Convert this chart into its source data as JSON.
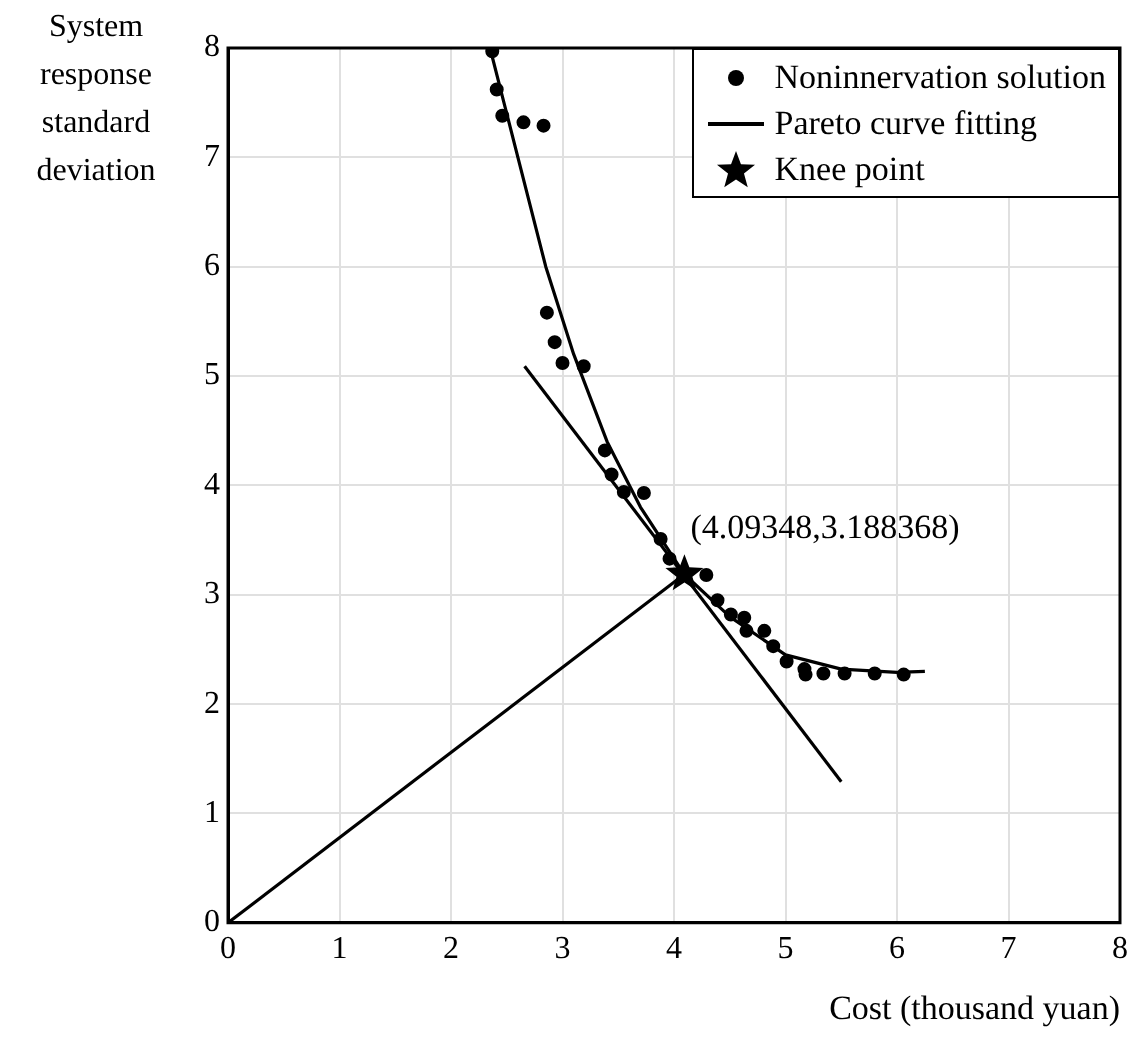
{
  "chart_data": {
    "type": "scatter",
    "xlabel": "Cost (thousand yuan)",
    "ylabel": "System response standard deviation",
    "xlim": [
      0,
      8
    ],
    "ylim": [
      0,
      8
    ],
    "xticks": [
      0,
      1,
      2,
      3,
      4,
      5,
      6,
      7,
      8
    ],
    "yticks": [
      0,
      1,
      2,
      3,
      4,
      5,
      6,
      7,
      8
    ],
    "grid": true,
    "legend": "top right",
    "annotations": [
      {
        "text": "(4.09348,3.188368)",
        "x": 4.09348,
        "y": 3.188368
      }
    ],
    "series": [
      {
        "name": "Noninnervation solution",
        "marker": "circle",
        "color": "#000000",
        "x": [
          2.37,
          2.41,
          2.46,
          2.65,
          2.83,
          2.86,
          2.93,
          3.0,
          3.19,
          3.38,
          3.44,
          3.55,
          3.73,
          3.88,
          3.96,
          4.29,
          4.39,
          4.51,
          4.63,
          4.65,
          4.81,
          4.89,
          5.01,
          5.17,
          5.18,
          5.34,
          5.53,
          5.8,
          6.06
        ],
        "values": [
          7.97,
          7.62,
          7.38,
          7.32,
          7.29,
          5.58,
          5.31,
          5.12,
          5.09,
          4.32,
          4.1,
          3.94,
          3.93,
          3.51,
          3.33,
          3.18,
          2.95,
          2.82,
          2.79,
          2.67,
          2.67,
          2.53,
          2.39,
          2.32,
          2.27,
          2.28,
          2.28,
          2.28,
          2.27
        ]
      },
      {
        "name": "Pareto curve fitting",
        "type": "line",
        "marker": "none",
        "line_style": "solid",
        "color": "#000000",
        "x": [
          2.35,
          2.6,
          2.85,
          3.1,
          3.4,
          3.7,
          4.09,
          4.5,
          5.0,
          5.5,
          6.0,
          6.25
        ],
        "values": [
          8.0,
          7.0,
          6.0,
          5.2,
          4.4,
          3.8,
          3.19,
          2.8,
          2.45,
          2.32,
          2.29,
          2.3
        ]
      },
      {
        "name": "Knee point",
        "marker": "star",
        "color": "#000000",
        "x": [
          4.09348
        ],
        "values": [
          3.188368
        ]
      },
      {
        "type": "line",
        "marker": "none",
        "line_style": "solid",
        "color": "#000000",
        "x": [
          2.66,
          5.5
        ],
        "values": [
          5.09,
          1.29
        ]
      },
      {
        "type": "line",
        "marker": "none",
        "line_style": "solid",
        "color": "#000000",
        "x": [
          0,
          4.09348
        ],
        "values": [
          0,
          3.188368
        ]
      }
    ]
  }
}
